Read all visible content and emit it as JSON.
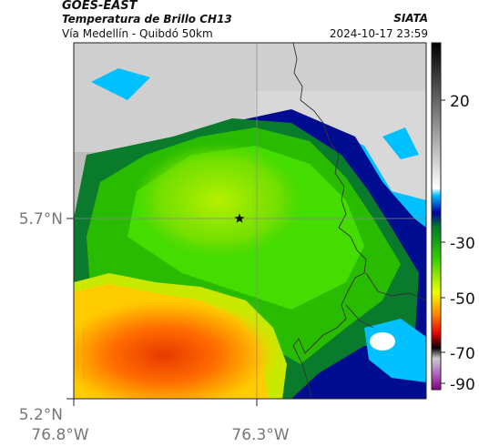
{
  "header": {
    "satellite": "GOES-EAST",
    "product": "Temperatura de Brillo CH13",
    "region": "Vía Medellín - Quibdó 50km",
    "agency": "SIATA",
    "datetime": "2024-10-17 23:59"
  },
  "map": {
    "lat_labels": [
      "5.7°N",
      "5.2°N"
    ],
    "lon_labels": [
      "76.8°W",
      "76.3°W"
    ],
    "marker": "star-marker"
  },
  "colorbar": {
    "labels": [
      "20",
      "-30",
      "-50",
      "-70",
      "-90"
    ]
  }
}
